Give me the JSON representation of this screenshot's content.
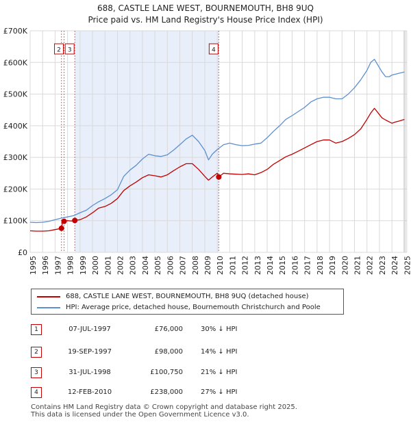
{
  "title_line1": "688, CASTLE LANE WEST, BOURNEMOUTH, BH8 9UQ",
  "title_line2": "Price paid vs. HM Land Registry's House Price Index (HPI)",
  "colors": {
    "price_paid": "#c00000",
    "hpi": "#5b8fd0",
    "shade": "#e8eefa",
    "grid": "#d9d9d9",
    "marker_line": "#e06060"
  },
  "chart_data": {
    "type": "line",
    "title": "Price paid vs. HM Land Registry's House Price Index (HPI)",
    "xlabel": "",
    "ylabel": "",
    "xlim": [
      1995,
      2025.2
    ],
    "ylim": [
      0,
      700000
    ],
    "y_ticks": [
      0,
      100000,
      200000,
      300000,
      400000,
      500000,
      600000,
      700000
    ],
    "y_tick_labels": [
      "£0",
      "£100K",
      "£200K",
      "£300K",
      "£400K",
      "£500K",
      "£600K",
      "£700K"
    ],
    "x_ticks": [
      1995,
      1996,
      1997,
      1998,
      1999,
      2000,
      2001,
      2002,
      2003,
      2004,
      2005,
      2006,
      2007,
      2008,
      2009,
      2010,
      2011,
      2012,
      2013,
      2014,
      2015,
      2016,
      2017,
      2018,
      2019,
      2020,
      2021,
      2022,
      2023,
      2024,
      2025
    ],
    "shaded_region": [
      1998.58,
      2010.12
    ],
    "series": [
      {
        "name": "688, CASTLE LANE WEST, BOURNEMOUTH, BH8 9UQ (detached house)",
        "x": [
          1995.0,
          1995.5,
          1996.0,
          1996.5,
          1997.0,
          1997.3,
          1997.51,
          1997.6,
          1997.72,
          1998.0,
          1998.3,
          1998.58,
          1999.0,
          1999.5,
          2000.0,
          2000.5,
          2001.0,
          2001.5,
          2002.0,
          2002.5,
          2003.0,
          2003.5,
          2004.0,
          2004.5,
          2005.0,
          2005.5,
          2006.0,
          2006.5,
          2007.0,
          2007.5,
          2008.0,
          2008.5,
          2009.0,
          2009.3,
          2009.6,
          2010.0,
          2010.12,
          2010.5,
          2011.0,
          2011.5,
          2012.0,
          2012.5,
          2013.0,
          2013.5,
          2014.0,
          2014.5,
          2015.0,
          2015.5,
          2016.0,
          2016.5,
          2017.0,
          2017.5,
          2018.0,
          2018.5,
          2019.0,
          2019.5,
          2020.0,
          2020.5,
          2021.0,
          2021.5,
          2022.0,
          2022.3,
          2022.6,
          2022.9,
          2023.2,
          2023.5,
          2023.8,
          2024.0,
          2024.3,
          2024.6,
          2025.0
        ],
        "values": [
          68000,
          67000,
          67000,
          68000,
          72000,
          74000,
          76000,
          98000,
          98000,
          100000,
          99000,
          100750,
          103000,
          112000,
          125000,
          140000,
          145000,
          155000,
          170000,
          195000,
          210000,
          222000,
          236000,
          245000,
          242000,
          238000,
          245000,
          258000,
          270000,
          280000,
          280000,
          262000,
          240000,
          228000,
          238000,
          250000,
          238000,
          250000,
          248000,
          247000,
          246000,
          248000,
          245000,
          252000,
          262000,
          278000,
          290000,
          302000,
          310000,
          320000,
          330000,
          340000,
          350000,
          355000,
          355000,
          345000,
          350000,
          360000,
          372000,
          390000,
          420000,
          440000,
          455000,
          440000,
          425000,
          418000,
          412000,
          408000,
          412000,
          415000,
          420000
        ]
      },
      {
        "name": "HPI: Average price, detached house, Bournemouth Christchurch and Poole",
        "x": [
          1995.0,
          1995.5,
          1996.0,
          1996.5,
          1997.0,
          1997.5,
          1998.0,
          1998.5,
          1999.0,
          1999.5,
          2000.0,
          2000.5,
          2001.0,
          2001.5,
          2002.0,
          2002.5,
          2003.0,
          2003.5,
          2004.0,
          2004.5,
          2005.0,
          2005.5,
          2006.0,
          2006.5,
          2007.0,
          2007.5,
          2008.0,
          2008.5,
          2009.0,
          2009.3,
          2009.6,
          2010.0,
          2010.5,
          2011.0,
          2011.5,
          2012.0,
          2012.5,
          2013.0,
          2013.5,
          2014.0,
          2014.5,
          2015.0,
          2015.5,
          2016.0,
          2016.5,
          2017.0,
          2017.5,
          2018.0,
          2018.5,
          2019.0,
          2019.5,
          2020.0,
          2020.5,
          2021.0,
          2021.5,
          2022.0,
          2022.3,
          2022.6,
          2022.9,
          2023.2,
          2023.5,
          2023.8,
          2024.0,
          2024.3,
          2024.6,
          2025.0
        ],
        "values": [
          95000,
          94000,
          95000,
          98000,
          103000,
          108000,
          112000,
          116000,
          125000,
          133000,
          148000,
          160000,
          170000,
          182000,
          198000,
          240000,
          260000,
          275000,
          295000,
          310000,
          305000,
          303000,
          308000,
          323000,
          340000,
          358000,
          370000,
          350000,
          322000,
          292000,
          310000,
          325000,
          340000,
          345000,
          340000,
          337000,
          338000,
          342000,
          345000,
          362000,
          382000,
          400000,
          420000,
          432000,
          445000,
          458000,
          475000,
          485000,
          490000,
          490000,
          485000,
          485000,
          500000,
          520000,
          545000,
          575000,
          600000,
          610000,
          590000,
          570000,
          555000,
          555000,
          560000,
          563000,
          566000,
          570000
        ]
      }
    ],
    "markers": [
      {
        "label": "1",
        "x": 1997.51,
        "y": 76000
      },
      {
        "label": "2",
        "x": 1997.72,
        "y": 98000
      },
      {
        "label": "3",
        "x": 1998.58,
        "y": 100750
      },
      {
        "label": "4",
        "x": 2010.12,
        "y": 238000
      }
    ],
    "marker_boxes": [
      {
        "label": "2",
        "x": 1997.72
      },
      {
        "label": "3",
        "x": 1998.58
      },
      {
        "label": "4",
        "x": 2010.12
      }
    ]
  },
  "legend": {
    "price_paid_label": "688, CASTLE LANE WEST, BOURNEMOUTH, BH8 9UQ (detached house)",
    "hpi_label": "HPI: Average price, detached house, Bournemouth Christchurch and Poole"
  },
  "transactions": [
    {
      "num": "1",
      "date": "07-JUL-1997",
      "price": "£76,000",
      "hpi": "30% ↓ HPI"
    },
    {
      "num": "2",
      "date": "19-SEP-1997",
      "price": "£98,000",
      "hpi": "14% ↓ HPI"
    },
    {
      "num": "3",
      "date": "31-JUL-1998",
      "price": "£100,750",
      "hpi": "21% ↓ HPI"
    },
    {
      "num": "4",
      "date": "12-FEB-2010",
      "price": "£238,000",
      "hpi": "27% ↓ HPI"
    }
  ],
  "footer_line1": "Contains HM Land Registry data © Crown copyright and database right 2025.",
  "footer_line2": "This data is licensed under the Open Government Licence v3.0."
}
